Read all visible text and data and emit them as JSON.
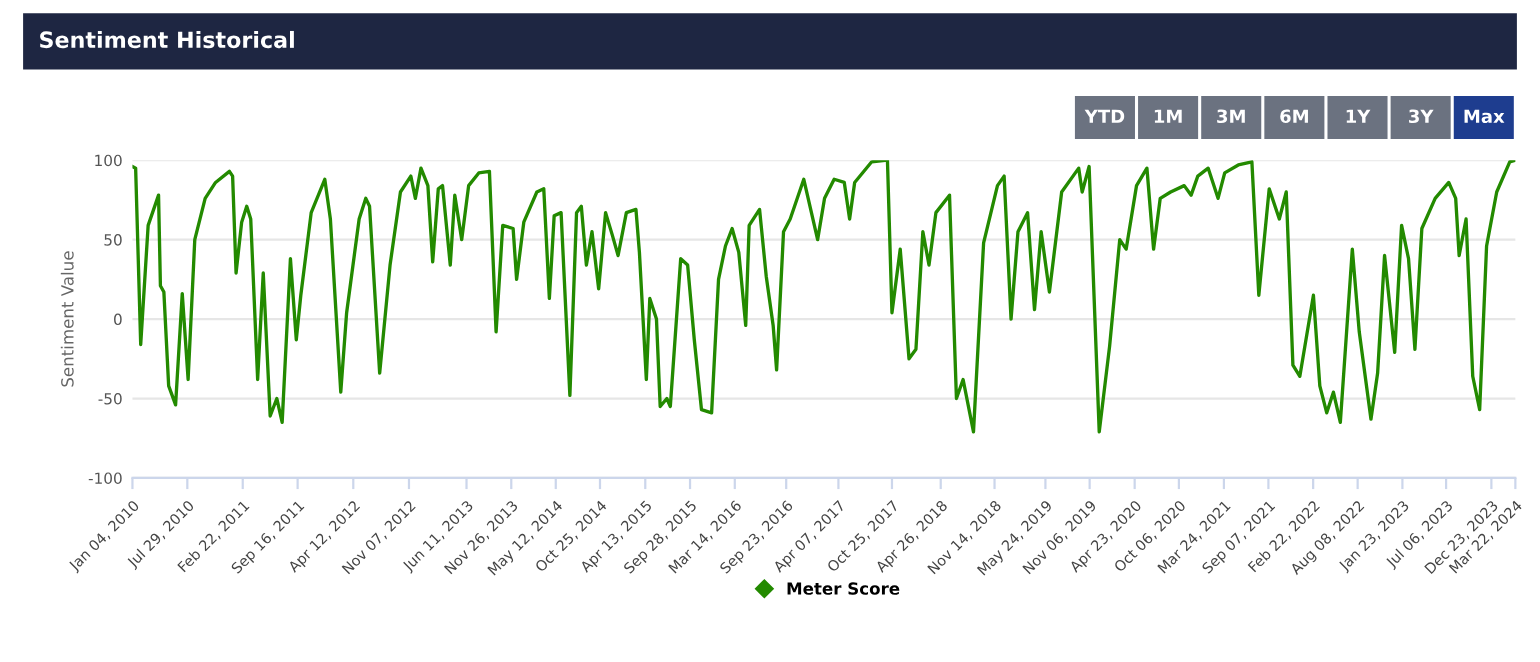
{
  "chart_data": {
    "type": "line",
    "title": "Sentiment Historical",
    "ylabel": "Sentiment Value",
    "annotations": [
      "YTD",
      "1M",
      "3M",
      "6M",
      "1Y",
      "3Y",
      "Max"
    ],
    "x": [
      "2010-01-04",
      "2010-01-16",
      "2010-02-04",
      "2010-03-04",
      "2010-04-12",
      "2010-04-19",
      "2010-05-02",
      "2010-05-20",
      "2010-06-15",
      "2010-07-10",
      "2010-08-01",
      "2010-08-26",
      "2010-10-04",
      "2010-11-12",
      "2011-01-03",
      "2011-01-15",
      "2011-01-28",
      "2011-02-18",
      "2011-03-09",
      "2011-03-24",
      "2011-04-19",
      "2011-05-10",
      "2011-06-05",
      "2011-06-30",
      "2011-07-20",
      "2011-08-20",
      "2011-09-11",
      "2011-09-28",
      "2011-11-06",
      "2011-12-27",
      "2012-01-17",
      "2012-02-25",
      "2012-03-18",
      "2012-05-04",
      "2012-05-29",
      "2012-06-12",
      "2012-07-20",
      "2012-08-28",
      "2012-10-06",
      "2012-11-14",
      "2012-12-01",
      "2012-12-22",
      "2013-01-17",
      "2013-02-04",
      "2013-02-25",
      "2013-03-13",
      "2013-04-11",
      "2013-04-28",
      "2013-05-24",
      "2013-06-19",
      "2013-07-27",
      "2013-09-05",
      "2013-09-30",
      "2013-10-25",
      "2013-12-03",
      "2013-12-16",
      "2014-01-12",
      "2014-03-02",
      "2014-03-28",
      "2014-04-18",
      "2014-05-06",
      "2014-06-01",
      "2014-07-04",
      "2014-07-29",
      "2014-08-16",
      "2014-09-04",
      "2014-09-25",
      "2014-10-20",
      "2014-11-15",
      "2014-12-10",
      "2015-01-01",
      "2015-02-01",
      "2015-03-09",
      "2015-03-22",
      "2015-04-17",
      "2015-04-30",
      "2015-05-25",
      "2015-06-08",
      "2015-07-03",
      "2015-07-16",
      "2015-08-24",
      "2015-09-19",
      "2015-10-14",
      "2015-11-10",
      "2015-12-18",
      "2016-01-13",
      "2016-02-08",
      "2016-03-04",
      "2016-03-29",
      "2016-04-24",
      "2016-05-07",
      "2016-06-15",
      "2016-07-10",
      "2016-08-05",
      "2016-08-18",
      "2016-09-13",
      "2016-10-08",
      "2016-11-28",
      "2017-01-19",
      "2017-02-14",
      "2017-03-22",
      "2017-04-29",
      "2017-05-19",
      "2017-06-07",
      "2017-08-10",
      "2017-10-08",
      "2017-10-25",
      "2017-11-25",
      "2017-12-28",
      "2018-01-23",
      "2018-02-18",
      "2018-03-13",
      "2018-04-08",
      "2018-05-29",
      "2018-06-24",
      "2018-07-19",
      "2018-08-27",
      "2018-10-04",
      "2018-11-25",
      "2018-12-20",
      "2019-01-15",
      "2019-02-10",
      "2019-03-18",
      "2019-04-13",
      "2019-05-08",
      "2019-06-08",
      "2019-07-24",
      "2019-09-26",
      "2019-10-09",
      "2019-11-04",
      "2019-12-12",
      "2020-01-20",
      "2020-02-27",
      "2020-03-22",
      "2020-04-30",
      "2020-06-08",
      "2020-07-03",
      "2020-07-28",
      "2020-09-05",
      "2020-10-26",
      "2020-11-21",
      "2020-12-16",
      "2021-01-24",
      "2021-03-02",
      "2021-03-27",
      "2021-05-17",
      "2021-07-07",
      "2021-08-02",
      "2021-09-10",
      "2021-10-18",
      "2021-11-13",
      "2021-12-08",
      "2022-01-03",
      "2022-02-23",
      "2022-03-19",
      "2022-04-14",
      "2022-05-09",
      "2022-06-04",
      "2022-07-19",
      "2022-08-14",
      "2022-09-27",
      "2022-10-22",
      "2022-11-17",
      "2022-12-25",
      "2023-01-20",
      "2023-02-15",
      "2023-03-11",
      "2023-04-06",
      "2023-05-26",
      "2023-07-16",
      "2023-08-11",
      "2023-08-24",
      "2023-09-19",
      "2023-10-14",
      "2023-11-09",
      "2023-12-05",
      "2024-01-12",
      "2024-03-01",
      "2024-03-22"
    ],
    "series": [
      {
        "name": "Meter Score",
        "color": "#238a00",
        "values": [
          96,
          95,
          -16,
          59,
          78,
          21,
          17,
          -42,
          -54,
          16,
          -38,
          50,
          76,
          86,
          93,
          90,
          29,
          61,
          71,
          63,
          -38,
          29,
          -61,
          -50,
          -65,
          38,
          -13,
          15,
          67,
          88,
          63,
          -46,
          4,
          63,
          76,
          71,
          -34,
          34,
          80,
          90,
          76,
          95,
          84,
          36,
          82,
          84,
          34,
          78,
          50,
          84,
          92,
          93,
          -8,
          59,
          57,
          25,
          61,
          80,
          82,
          13,
          65,
          67,
          -48,
          67,
          71,
          34,
          55,
          19,
          67,
          53,
          40,
          67,
          69,
          42,
          -38,
          13,
          0,
          -55,
          -50,
          -55,
          38,
          34,
          -13,
          -57,
          -59,
          25,
          46,
          57,
          42,
          -4,
          59,
          69,
          27,
          -4,
          -32,
          55,
          63,
          88,
          50,
          76,
          88,
          86,
          63,
          86,
          99,
          100,
          4,
          44,
          -25,
          -19,
          55,
          34,
          67,
          78,
          -50,
          -38,
          -71,
          48,
          84,
          90,
          0,
          55,
          67,
          6,
          55,
          17,
          80,
          95,
          80,
          96,
          -71,
          -17,
          50,
          44,
          84,
          95,
          44,
          76,
          80,
          84,
          78,
          90,
          95,
          76,
          92,
          97,
          99,
          15,
          82,
          63,
          80,
          -29,
          -36,
          15,
          -42,
          -59,
          -46,
          -65,
          44,
          -8,
          -63,
          -34,
          40,
          -21,
          59,
          38,
          -19,
          57,
          76,
          86,
          76,
          40,
          63,
          -36,
          -57,
          46,
          80,
          99,
          100
        ]
      }
    ],
    "xlim": [
      "2010-01-04",
      "2024-03-22"
    ],
    "xticks": [
      {
        "value": "2010-01-04",
        "label": "Jan 04, 2010"
      },
      {
        "value": "2010-07-29",
        "label": "Jul 29, 2010"
      },
      {
        "value": "2011-02-22",
        "label": "Feb 22, 2011"
      },
      {
        "value": "2011-09-16",
        "label": "Sep 16, 2011"
      },
      {
        "value": "2012-04-12",
        "label": "Apr 12, 2012"
      },
      {
        "value": "2012-11-07",
        "label": "Nov 07, 2012"
      },
      {
        "value": "2013-06-11",
        "label": "Jun 11, 2013"
      },
      {
        "value": "2013-11-26",
        "label": "Nov 26, 2013"
      },
      {
        "value": "2014-05-12",
        "label": "May 12, 2014"
      },
      {
        "value": "2014-10-25",
        "label": "Oct 25, 2014"
      },
      {
        "value": "2015-04-13",
        "label": "Apr 13, 2015"
      },
      {
        "value": "2015-09-28",
        "label": "Sep 28, 2015"
      },
      {
        "value": "2016-03-14",
        "label": "Mar 14, 2016"
      },
      {
        "value": "2016-09-23",
        "label": "Sep 23, 2016"
      },
      {
        "value": "2017-04-07",
        "label": "Apr 07, 2017"
      },
      {
        "value": "2017-10-25",
        "label": "Oct 25, 2017"
      },
      {
        "value": "2018-04-26",
        "label": "Apr 26, 2018"
      },
      {
        "value": "2018-11-14",
        "label": "Nov 14, 2018"
      },
      {
        "value": "2019-05-24",
        "label": "May 24, 2019"
      },
      {
        "value": "2019-11-06",
        "label": "Nov 06, 2019"
      },
      {
        "value": "2020-04-23",
        "label": "Apr 23, 2020"
      },
      {
        "value": "2020-10-06",
        "label": "Oct 06, 2020"
      },
      {
        "value": "2021-03-24",
        "label": "Mar 24, 2021"
      },
      {
        "value": "2021-09-07",
        "label": "Sep 07, 2021"
      },
      {
        "value": "2022-02-22",
        "label": "Feb 22, 2022"
      },
      {
        "value": "2022-08-08",
        "label": "Aug 08, 2022"
      },
      {
        "value": "2023-01-23",
        "label": "Jan 23, 2023"
      },
      {
        "value": "2023-07-06",
        "label": "Jul 06, 2023"
      },
      {
        "value": "2023-12-23",
        "label": "Dec 23, 2023"
      },
      {
        "value": "2024-03-22",
        "label": "Mar 22, 2024"
      }
    ],
    "ylim": [
      -100,
      100
    ],
    "yticks": [
      -100,
      -50,
      0,
      50,
      100
    ],
    "grid": "y",
    "legend": "bottom",
    "marker": "none",
    "line_style": "solid"
  }
}
